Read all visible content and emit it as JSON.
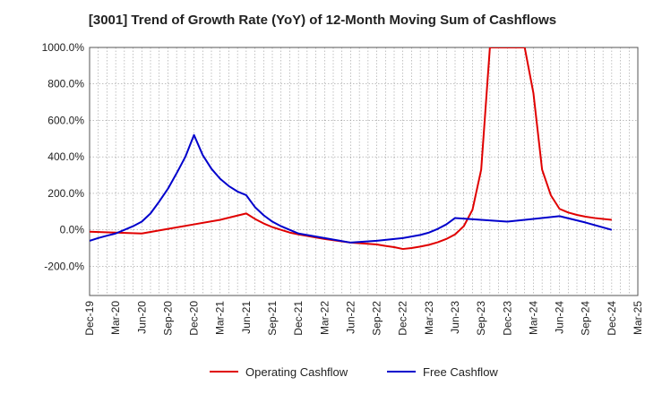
{
  "chart_data": {
    "type": "line",
    "title": "[3001]  Trend of Growth Rate (YoY) of 12-Month Moving Sum of Cashflows",
    "xlabel": "",
    "ylabel": "",
    "ylim": [
      -360,
      1000
    ],
    "yticks": [
      1000,
      800,
      600,
      400,
      200,
      0,
      -200
    ],
    "ytick_labels": [
      "1000.0%",
      "800.0%",
      "600.0%",
      "400.0%",
      "200.0%",
      "0.0%",
      "-200.0%"
    ],
    "x_tick_labels": [
      "Dec-19",
      "Mar-20",
      "Jun-20",
      "Sep-20",
      "Dec-20",
      "Mar-21",
      "Jun-21",
      "Sep-21",
      "Dec-21",
      "Mar-22",
      "Jun-22",
      "Sep-22",
      "Dec-22",
      "Mar-23",
      "Jun-23",
      "Sep-23",
      "Dec-23",
      "Mar-24",
      "Jun-24",
      "Sep-24",
      "Dec-24",
      "Mar-25"
    ],
    "x_month_range": [
      "Dec-19",
      "Mar-25"
    ],
    "grid": true,
    "legend_position": "bottom",
    "series": [
      {
        "name": "Operating Cashflow",
        "color": "#e00000",
        "x": [
          "Dec-19",
          "Mar-20",
          "Jun-20",
          "Sep-20",
          "Dec-20",
          "Mar-21",
          "Jun-21",
          "Jul-21",
          "Aug-21",
          "Sep-21",
          "Oct-21",
          "Nov-21",
          "Dec-21",
          "Mar-22",
          "Jun-22",
          "Sep-22",
          "Oct-22",
          "Nov-22",
          "Dec-22",
          "Jan-23",
          "Feb-23",
          "Mar-23",
          "Apr-23",
          "May-23",
          "Jun-23",
          "Jul-23",
          "Aug-23",
          "Sep-23",
          "Oct-23",
          "Feb-24",
          "Mar-24",
          "Apr-24",
          "May-24",
          "Jun-24",
          "Jul-24",
          "Aug-24",
          "Sep-24",
          "Oct-24",
          "Nov-24",
          "Dec-24"
        ],
        "values": [
          -10,
          -15,
          -20,
          5,
          30,
          55,
          90,
          60,
          35,
          15,
          0,
          -15,
          -25,
          -50,
          -70,
          -80,
          -88,
          -95,
          -105,
          -100,
          -92,
          -82,
          -68,
          -50,
          -25,
          20,
          110,
          330,
          1000,
          1000,
          750,
          330,
          190,
          115,
          95,
          82,
          72,
          65,
          60,
          55
        ]
      },
      {
        "name": "Free Cashflow",
        "color": "#0000cc",
        "x": [
          "Dec-19",
          "Jan-20",
          "Feb-20",
          "Mar-20",
          "Apr-20",
          "May-20",
          "Jun-20",
          "Jul-20",
          "Aug-20",
          "Sep-20",
          "Oct-20",
          "Nov-20",
          "Dec-20",
          "Jan-21",
          "Feb-21",
          "Mar-21",
          "Apr-21",
          "May-21",
          "Jun-21",
          "Jul-21",
          "Aug-21",
          "Sep-21",
          "Oct-21",
          "Nov-21",
          "Dec-21",
          "Mar-22",
          "Jun-22",
          "Sep-22",
          "Dec-22",
          "Feb-23",
          "Mar-23",
          "Apr-23",
          "May-23",
          "Jun-23",
          "Sep-23",
          "Dec-23",
          "Mar-24",
          "Jun-24",
          "Sep-24",
          "Dec-24"
        ],
        "values": [
          -60,
          -45,
          -32,
          -20,
          0,
          20,
          45,
          90,
          155,
          225,
          310,
          400,
          520,
          410,
          335,
          280,
          240,
          210,
          190,
          125,
          80,
          45,
          20,
          0,
          -20,
          -45,
          -70,
          -60,
          -45,
          -28,
          -15,
          5,
          30,
          65,
          55,
          45,
          60,
          75,
          40,
          0
        ]
      }
    ]
  }
}
